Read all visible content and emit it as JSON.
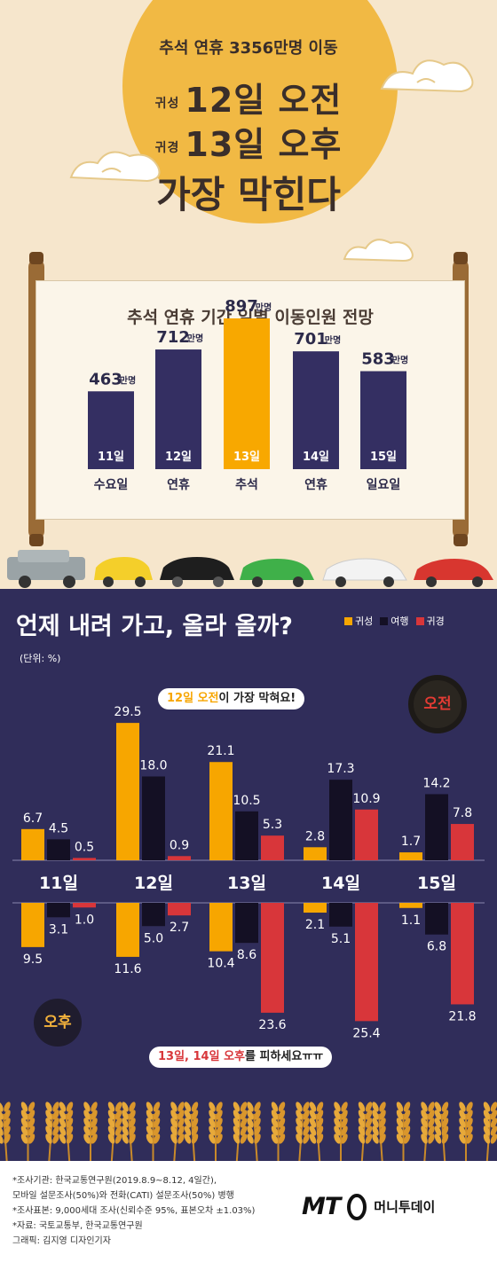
{
  "header": {
    "subtitle": "추석 연휴 3356만명 이동",
    "line1_tag": "귀성",
    "line1_text": "12일 오전",
    "line2_tag": "귀경",
    "line2_text": "13일 오후",
    "main": "가장 막힌다"
  },
  "colors": {
    "homebound": "#f7a600",
    "travel": "#141024",
    "return": "#d8363a",
    "moon": "#f1b944",
    "scroll_bar": "#342f62",
    "scroll_highlight": "#f8a800",
    "navy_bg": "#302d5a"
  },
  "chart_data": [
    {
      "type": "bar",
      "title": "추석 연휴 기간 일별 이동인원 전망",
      "unit": "만명",
      "categories": [
        "11일",
        "12일",
        "13일",
        "14일",
        "15일"
      ],
      "day_labels": [
        "수요일",
        "연휴",
        "추석",
        "연휴",
        "일요일"
      ],
      "values": [
        463,
        712,
        897,
        701,
        583
      ],
      "value_labels": [
        "463",
        "712",
        "897",
        "701",
        "583"
      ],
      "highlight_index": 2
    },
    {
      "type": "bar",
      "title": "언제 내려 가고, 올라 올까?",
      "unit_label": "(단위: %)",
      "categories": [
        "11일",
        "12일",
        "13일",
        "14일",
        "15일"
      ],
      "legend_position": "top-right",
      "period_am": "오전",
      "period_pm": "오후",
      "am_series": [
        {
          "name": "귀성",
          "values": [
            6.7,
            29.5,
            21.1,
            2.8,
            1.7
          ],
          "labels": [
            "6.7",
            "29.5",
            "21.1",
            "2.8",
            "1.7"
          ]
        },
        {
          "name": "여행",
          "values": [
            4.5,
            18.0,
            10.5,
            17.3,
            14.2
          ],
          "labels": [
            "4.5",
            "18.0",
            "10.5",
            "17.3",
            "14.2"
          ]
        },
        {
          "name": "귀경",
          "values": [
            0.5,
            0.9,
            5.3,
            10.9,
            7.8
          ],
          "labels": [
            "0.5",
            "0.9",
            "5.3",
            "10.9",
            "7.8"
          ]
        }
      ],
      "pm_series": [
        {
          "name": "귀성",
          "values": [
            9.5,
            11.6,
            10.4,
            2.1,
            1.1
          ],
          "labels": [
            "9.5",
            "11.6",
            "10.4",
            "2.1",
            "1.1"
          ]
        },
        {
          "name": "여행",
          "values": [
            3.1,
            5.0,
            8.6,
            5.1,
            6.8
          ],
          "labels": [
            "3.1",
            "5.0",
            "8.6",
            "5.1",
            "6.8"
          ]
        },
        {
          "name": "귀경",
          "values": [
            1.0,
            2.7,
            23.6,
            25.4,
            21.8
          ],
          "labels": [
            "1.0",
            "2.7",
            "23.6",
            "25.4",
            "21.8"
          ]
        }
      ]
    }
  ],
  "callouts": {
    "am_highlight": "12일 오전",
    "am_rest": "이 가장 막혀요!",
    "pm_highlight": "13일, 14일 오후",
    "pm_rest": "를 피하세요ㅠㅠ"
  },
  "footer": {
    "sources": [
      "*조사기관: 한국교통연구원(2019.8.9~8.12, 4일간),",
      "모바일 설문조사(50%)와 전화(CATI) 설문조사(50%) 병행",
      "*조사표본: 9,000세대 조사(신뢰수준 95%, 표본오차 ±1.03%)",
      "*자료: 국토교통부, 한국교통연구원",
      "그래픽: 김지영 디자인기자"
    ],
    "logo_mark": "MT",
    "logo_name": "머니투데이"
  }
}
